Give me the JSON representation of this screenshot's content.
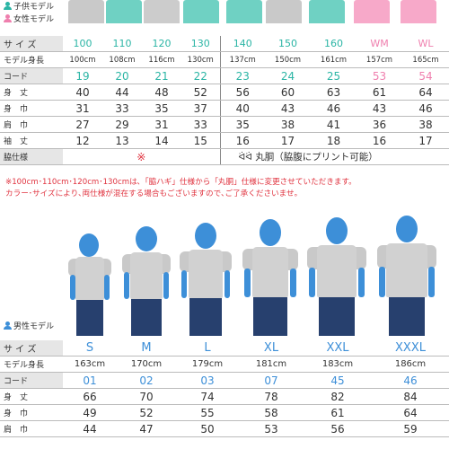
{
  "kids_legend": "子供モデル",
  "women_legend": "女性モデル",
  "men_legend": "男性モデル",
  "colors": {
    "kids": "#2bb5a5",
    "women": "#ef7fae",
    "men": "#3d8fd8",
    "notes": "#e0333f",
    "kid_shirts": [
      "#c9c9c9",
      "#6fd1c3",
      "#cccccc",
      "#6fd1c3",
      "#6fd1c3",
      "#c9c9c9",
      "#6fd1c3",
      "#ef7fae",
      "#f7a9c9",
      "#f7a9c9"
    ]
  },
  "top_table": {
    "labels": {
      "size": "サ イ ズ",
      "model": "モデル身長",
      "code": "コード",
      "length": "身　丈",
      "width": "身　巾",
      "shoulder": "肩　巾",
      "sleeve": "袖　丈",
      "side": "脇仕様"
    },
    "sizes": [
      "100",
      "110",
      "120",
      "130",
      "140",
      "150",
      "160",
      "WM",
      "WL"
    ],
    "model_heights": [
      "100cm",
      "108cm",
      "116cm",
      "130cm",
      "137cm",
      "150cm",
      "161cm",
      "157cm",
      "165cm"
    ],
    "codes": [
      "19",
      "20",
      "21",
      "22",
      "23",
      "24",
      "25",
      "53",
      "54"
    ],
    "length": [
      "40",
      "44",
      "48",
      "52",
      "56",
      "60",
      "63",
      "61",
      "64"
    ],
    "width": [
      "31",
      "33",
      "35",
      "37",
      "40",
      "43",
      "46",
      "43",
      "46"
    ],
    "shoulder": [
      "27",
      "29",
      "31",
      "33",
      "35",
      "38",
      "41",
      "36",
      "38"
    ],
    "sleeve": [
      "12",
      "13",
      "14",
      "15",
      "16",
      "17",
      "18",
      "16",
      "17"
    ],
    "side_left": "※",
    "side_right": "丸胴（脇腹にプリント可能）"
  },
  "notes": {
    "line1": "※100cm･110cm･120cm･130cmは､「脇ハギ」仕様から「丸胴」仕様に変更させていただきます。",
    "line2": "カラー･サイズにより､両仕様が混在する場合もございますので､ご了承くださいませ。"
  },
  "bottom_table": {
    "labels": {
      "size": "サ イ ズ",
      "model": "モデル身長",
      "code": "コード",
      "length": "身　丈",
      "width": "身　巾",
      "shoulder": "肩　巾"
    },
    "sizes": [
      "S",
      "M",
      "L",
      "XL",
      "XXL",
      "XXXL"
    ],
    "model_heights": [
      "163cm",
      "170cm",
      "179cm",
      "181cm",
      "183cm",
      "186cm"
    ],
    "codes": [
      "01",
      "02",
      "03",
      "07",
      "45",
      "46"
    ],
    "length": [
      "66",
      "70",
      "74",
      "78",
      "82",
      "84"
    ],
    "width": [
      "49",
      "52",
      "55",
      "58",
      "61",
      "64"
    ],
    "shoulder": [
      "44",
      "47",
      "50",
      "53",
      "56",
      "59"
    ]
  }
}
